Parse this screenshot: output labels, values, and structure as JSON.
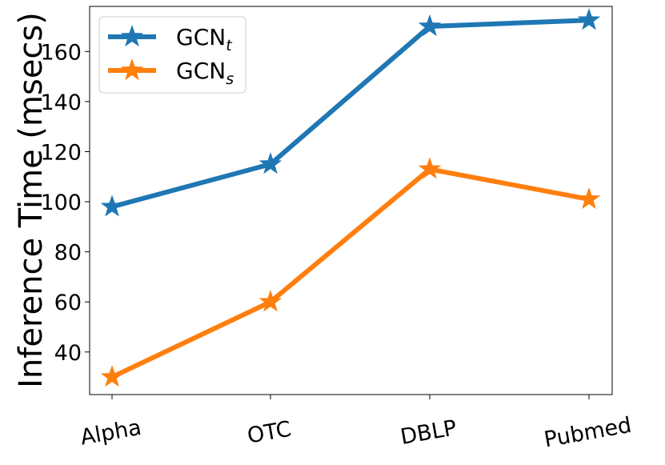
{
  "chart_data": {
    "type": "line",
    "title": "",
    "xlabel": "",
    "ylabel": "Inference Time (msecs)",
    "categories": [
      "Alpha",
      "OTC",
      "DBLP",
      "Pubmed"
    ],
    "ylim": [
      23,
      178
    ],
    "yticks": [
      40,
      60,
      80,
      100,
      120,
      140,
      160
    ],
    "marker": "star",
    "legend_position": "top-left",
    "series": [
      {
        "name_base": "GCN",
        "name_sub": "t",
        "color": "#1f77b4",
        "values": [
          98,
          115,
          170,
          172.5
        ]
      },
      {
        "name_base": "GCN",
        "name_sub": "s",
        "color": "#ff7f0e",
        "values": [
          30,
          60,
          113,
          101
        ]
      }
    ]
  }
}
